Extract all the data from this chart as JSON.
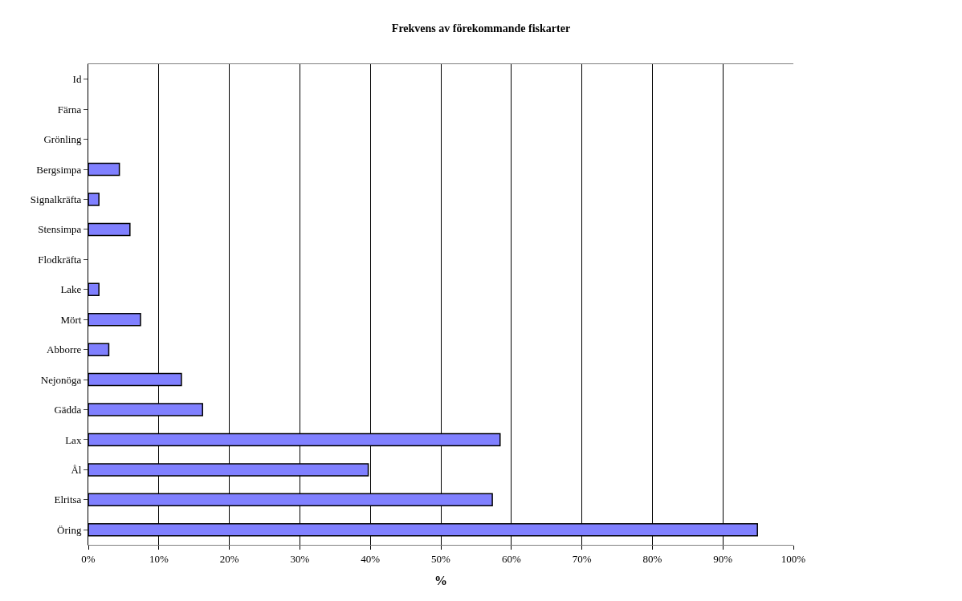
{
  "chart_data": {
    "type": "bar",
    "orientation": "horizontal",
    "title": "Frekvens av förekommande fiskarter",
    "xlabel": "%",
    "categories": [
      "Id",
      "Färna",
      "Grönling",
      "Bergsimpa",
      "Signalkräfta",
      "Stensimpa",
      "Flodkräfta",
      "Lake",
      "Mört",
      "Abborre",
      "Nejonöga",
      "Gädda",
      "Lax",
      "Ål",
      "Elritsa",
      "Öring"
    ],
    "values": [
      0,
      0,
      0,
      4.4,
      1.5,
      5.9,
      0,
      1.5,
      7.4,
      2.9,
      13.2,
      16.2,
      58.4,
      39.7,
      57.3,
      94.9
    ],
    "color": "#8080ff",
    "xlim": [
      0,
      100
    ],
    "xticks": [
      {
        "value": 0,
        "label": "0%"
      },
      {
        "value": 10,
        "label": "10%"
      },
      {
        "value": 20,
        "label": "20%"
      },
      {
        "value": 30,
        "label": "30%"
      },
      {
        "value": 40,
        "label": "40%"
      },
      {
        "value": 50,
        "label": "50%"
      },
      {
        "value": 60,
        "label": "60%"
      },
      {
        "value": 70,
        "label": "70%"
      },
      {
        "value": 80,
        "label": "80%"
      },
      {
        "value": 90,
        "label": "90%"
      },
      {
        "value": 100,
        "label": "100%"
      }
    ],
    "grid": "x",
    "legend": false
  }
}
